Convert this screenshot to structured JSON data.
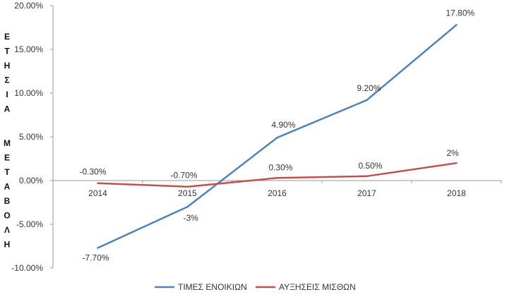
{
  "chart_data": {
    "type": "line",
    "title": "",
    "xlabel": "",
    "ylabel": "ΕΤΗΣΙΑ ΜΕΤΑΒΟΛΗ",
    "ylabel_parts": [
      "ΕΤΗΣΙΑ",
      "ΜΕΤΑΒΟΛΗ"
    ],
    "categories": [
      "2014",
      "2015",
      "2016",
      "2017",
      "2018"
    ],
    "ylim": [
      -10,
      20
    ],
    "yticks": [
      -10,
      -5,
      0,
      5,
      10,
      15,
      20
    ],
    "ytick_labels": [
      "-10.00%",
      "-5.00%",
      "0.00%",
      "5.00%",
      "10.00%",
      "15.00%",
      "20.00%"
    ],
    "grid": false,
    "legend_position": "bottom",
    "series": [
      {
        "name": "ΤΙΜΕΣ ΕΝΟΙΚΙΩΝ",
        "color": "#4f81bd",
        "values": [
          -7.7,
          -3,
          4.9,
          9.2,
          17.8
        ],
        "labels": [
          "-7.70%",
          "-3%",
          "4.90%",
          "9.20%",
          "17.80%"
        ]
      },
      {
        "name": "ΑΥΞΗΣΕΙΣ ΜΙΣΘΩΝ",
        "color": "#c0504d",
        "values": [
          -0.3,
          -0.7,
          0.3,
          0.5,
          2
        ],
        "labels": [
          "-0.30%",
          "-0.70%",
          "0.30%",
          "0.50%",
          "2%"
        ]
      }
    ]
  }
}
